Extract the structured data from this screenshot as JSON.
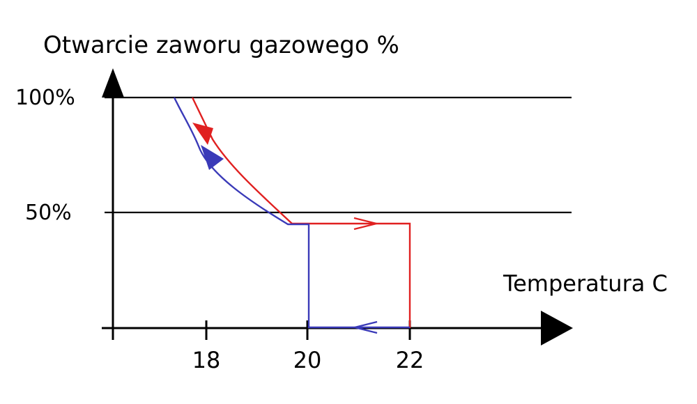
{
  "diagram": {
    "title": "Otwarcie zaworu gazowego %",
    "x_axis_label": "Temperatura C",
    "y_ticks": [
      "100%",
      "50%"
    ],
    "x_ticks": [
      "18",
      "20",
      "22"
    ]
  },
  "chart_data": {
    "type": "line",
    "title": "",
    "ylabel": "Otwarcie zaworu gazowego %",
    "xlabel": "Temperatura C",
    "xlim": [
      16,
      23.5
    ],
    "ylim": [
      0,
      100
    ],
    "x_ticks": [
      18,
      20,
      22
    ],
    "y_ticks": [
      50,
      100
    ],
    "series": [
      {
        "color": "#e02020",
        "points": [
          [
            22,
            0
          ],
          [
            22,
            45
          ],
          [
            19.6,
            45
          ],
          [
            18.1,
            82
          ],
          [
            17.8,
            100
          ]
        ]
      },
      {
        "color": "#3a3ab8",
        "points": [
          [
            22,
            0.5
          ],
          [
            20,
            0.5
          ],
          [
            20,
            45
          ],
          [
            19.4,
            45
          ],
          [
            18.5,
            60
          ],
          [
            17.9,
            80
          ],
          [
            17.4,
            100
          ]
        ]
      }
    ],
    "colors": {
      "heating": "#e02020",
      "cooling": "#3a3ab8",
      "axes": "#000000"
    }
  }
}
